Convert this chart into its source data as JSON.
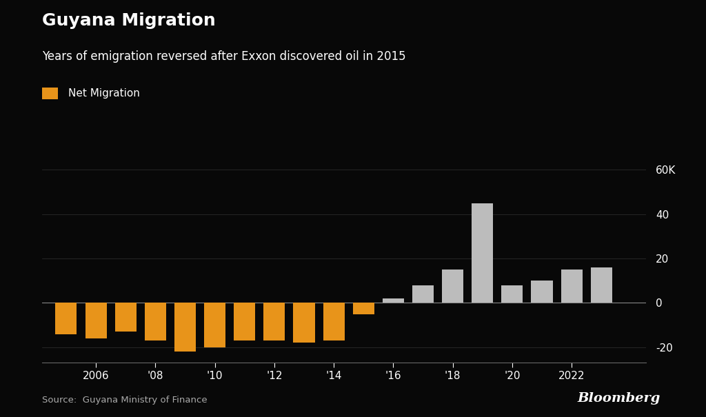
{
  "years": [
    2005,
    2006,
    2007,
    2008,
    2009,
    2010,
    2011,
    2012,
    2013,
    2014,
    2015,
    2016,
    2017,
    2018,
    2019,
    2020,
    2021,
    2022,
    2023
  ],
  "values": [
    -14,
    -16,
    -13,
    -17,
    -22,
    -20,
    -17,
    -17,
    -18,
    -17,
    -5,
    2,
    8,
    15,
    45,
    8,
    10,
    15,
    16
  ],
  "colors_negative": "#E8941A",
  "colors_positive": "#BCBCBC",
  "title": "Guyana Migration",
  "subtitle": "Years of emigration reversed after Exxon discovered oil in 2015",
  "legend_label": "Net Migration",
  "source": "Source:  Guyana Ministry of Finance",
  "bloomberg": "Bloomberg",
  "background_color": "#080808",
  "text_color": "#ffffff",
  "axis_tick_labels": [
    "2006",
    "'08",
    "'10",
    "'12",
    "'14",
    "'16",
    "'18",
    "'20",
    "2022"
  ],
  "axis_tick_positions": [
    2006,
    2008,
    2010,
    2012,
    2014,
    2016,
    2018,
    2020,
    2022
  ],
  "ylim": [
    -27,
    67
  ],
  "yticks": [
    -20,
    0,
    20,
    40,
    60
  ],
  "ytick_labels": [
    "-20",
    "0",
    "20",
    "40",
    "60K"
  ]
}
